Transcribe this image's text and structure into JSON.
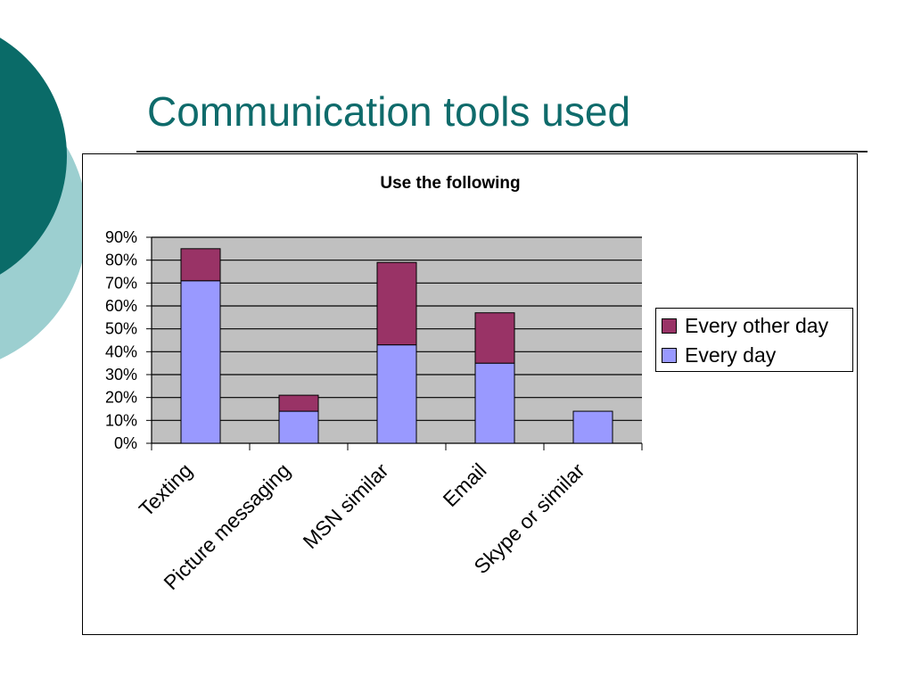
{
  "slide": {
    "title": "Communication tools used"
  },
  "colors": {
    "title": "#0f6b6b",
    "deco_dark": "#0a6b68",
    "deco_light": "#9ccfd0",
    "plot_background": "#c0c0c0"
  },
  "chart_data": {
    "type": "bar",
    "stacked": true,
    "title": "Use the following",
    "categories": [
      "Texting",
      "Picture messaging",
      "MSN similar",
      "Email",
      "Skype or similar"
    ],
    "series": [
      {
        "name": "Every day",
        "values": [
          71,
          14,
          43,
          35,
          14
        ],
        "color": "#9999ff"
      },
      {
        "name": "Every other day",
        "values": [
          14,
          7,
          36,
          22,
          0
        ],
        "color": "#993366"
      }
    ],
    "yticks": [
      "0%",
      "10%",
      "20%",
      "30%",
      "40%",
      "50%",
      "60%",
      "70%",
      "80%",
      "90%"
    ],
    "ylim": [
      0,
      90
    ],
    "grid": true,
    "legend_position": "right",
    "legend_order": [
      "Every other day",
      "Every day"
    ]
  }
}
